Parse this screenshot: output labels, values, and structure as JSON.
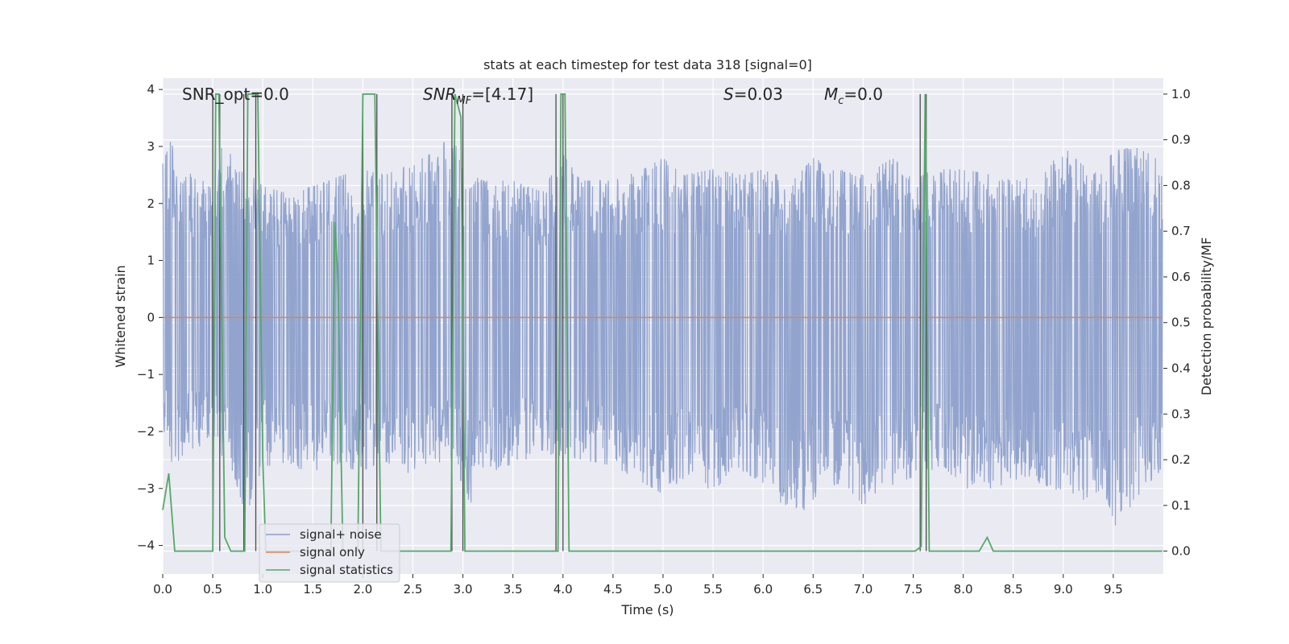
{
  "chart_data": {
    "type": "line",
    "title": "stats at each timestep for test data 318 [signal=0]",
    "xlabel": "Time (s)",
    "ylabel": "Whitened strain",
    "y2label": "Detection probability/MF",
    "xlim": [
      0,
      10
    ],
    "ylim": [
      -4.5,
      4.2
    ],
    "y2lim": [
      -0.05,
      1.035
    ],
    "xticks": [
      "0.0",
      "0.5",
      "1.0",
      "1.5",
      "2.0",
      "2.5",
      "3.0",
      "3.5",
      "4.0",
      "4.5",
      "5.0",
      "5.5",
      "6.0",
      "6.5",
      "7.0",
      "7.5",
      "8.0",
      "8.5",
      "9.0",
      "9.5"
    ],
    "yticks": [
      "4",
      "3",
      "2",
      "1",
      "0",
      "−1",
      "−2",
      "−3",
      "−4"
    ],
    "y2ticks": [
      "1.0",
      "0.9",
      "0.8",
      "0.7",
      "0.6",
      "0.5",
      "0.4",
      "0.3",
      "0.2",
      "0.1",
      "0.0"
    ],
    "grid": true,
    "legend_position": "lower-left",
    "annotations": {
      "snr_opt": "SNR_opt=0.0",
      "snr_mf_label": "SNR",
      "snr_mf_sub": "MF",
      "snr_mf_value": "=[4.17]",
      "s_label": "S",
      "s_value": "=0.03",
      "mc_label": "M",
      "mc_sub": "c",
      "mc_value": "=0.0"
    },
    "colors": {
      "signal_noise": "#8da0cb",
      "signal_only": "#dd8452",
      "statistics": "#55a868",
      "markers": "#4c4c4c",
      "background": "#eaeaf2",
      "grid": "#ffffff"
    },
    "series": [
      {
        "name": "signal+ noise",
        "note_visible": "dense noise trace, envelope",
        "upper_envelope": [
          [
            0.0,
            2.7
          ],
          [
            0.1,
            3.2
          ],
          [
            0.2,
            2.6
          ],
          [
            0.3,
            2.5
          ],
          [
            0.5,
            2.3
          ],
          [
            0.6,
            3.1
          ],
          [
            0.7,
            2.8
          ],
          [
            0.9,
            2.5
          ],
          [
            1.0,
            2.3
          ],
          [
            1.2,
            2.2
          ],
          [
            1.5,
            2.3
          ],
          [
            1.8,
            2.5
          ],
          [
            2.0,
            2.6
          ],
          [
            2.2,
            2.5
          ],
          [
            2.5,
            2.7
          ],
          [
            2.7,
            2.9
          ],
          [
            2.9,
            3.2
          ],
          [
            3.0,
            2.6
          ],
          [
            3.2,
            2.4
          ],
          [
            3.5,
            2.4
          ],
          [
            3.8,
            2.2
          ],
          [
            4.0,
            2.9
          ],
          [
            4.2,
            2.4
          ],
          [
            4.5,
            2.4
          ],
          [
            4.8,
            2.6
          ],
          [
            5.0,
            2.8
          ],
          [
            5.2,
            2.5
          ],
          [
            5.5,
            2.6
          ],
          [
            5.8,
            2.5
          ],
          [
            6.0,
            2.6
          ],
          [
            6.3,
            2.4
          ],
          [
            6.5,
            2.8
          ],
          [
            6.8,
            2.6
          ],
          [
            7.0,
            2.5
          ],
          [
            7.3,
            2.8
          ],
          [
            7.5,
            2.4
          ],
          [
            7.7,
            2.6
          ],
          [
            8.0,
            2.6
          ],
          [
            8.3,
            2.5
          ],
          [
            8.5,
            2.4
          ],
          [
            8.8,
            2.5
          ],
          [
            9.0,
            3.0
          ],
          [
            9.3,
            2.5
          ],
          [
            9.5,
            2.9
          ],
          [
            9.7,
            3.0
          ],
          [
            9.95,
            2.8
          ]
        ],
        "lower_envelope": [
          [
            0.0,
            -2.0
          ],
          [
            0.1,
            -2.6
          ],
          [
            0.3,
            -2.3
          ],
          [
            0.5,
            -2.2
          ],
          [
            0.7,
            -2.7
          ],
          [
            0.85,
            -3.6
          ],
          [
            1.0,
            -2.6
          ],
          [
            1.2,
            -2.6
          ],
          [
            1.5,
            -2.7
          ],
          [
            1.7,
            -2.6
          ],
          [
            2.0,
            -2.7
          ],
          [
            2.2,
            -2.5
          ],
          [
            2.4,
            -2.7
          ],
          [
            2.6,
            -2.8
          ],
          [
            2.9,
            -2.5
          ],
          [
            3.1,
            -3.4
          ],
          [
            3.3,
            -2.7
          ],
          [
            3.6,
            -2.5
          ],
          [
            3.9,
            -2.4
          ],
          [
            4.2,
            -2.5
          ],
          [
            4.5,
            -2.6
          ],
          [
            4.8,
            -2.9
          ],
          [
            5.0,
            -3.1
          ],
          [
            5.3,
            -2.7
          ],
          [
            5.5,
            -3.1
          ],
          [
            5.7,
            -2.6
          ],
          [
            6.0,
            -2.9
          ],
          [
            6.2,
            -3.3
          ],
          [
            6.4,
            -3.4
          ],
          [
            6.6,
            -3.0
          ],
          [
            6.8,
            -2.9
          ],
          [
            7.0,
            -3.3
          ],
          [
            7.2,
            -3.0
          ],
          [
            7.5,
            -2.8
          ],
          [
            7.8,
            -2.6
          ],
          [
            8.0,
            -3.0
          ],
          [
            8.3,
            -3.0
          ],
          [
            8.6,
            -2.8
          ],
          [
            8.9,
            -3.0
          ],
          [
            9.2,
            -3.2
          ],
          [
            9.4,
            -3.0
          ],
          [
            9.55,
            -3.8
          ],
          [
            9.7,
            -3.2
          ],
          [
            9.95,
            -2.8
          ]
        ]
      },
      {
        "name": "signal only",
        "x": [
          0.0,
          9.99
        ],
        "y": [
          0.0,
          0.0
        ]
      },
      {
        "name": "signal statistics",
        "axis": "right",
        "x": [
          0.0,
          0.06,
          0.12,
          0.18,
          0.5,
          0.53,
          0.56,
          0.62,
          0.68,
          0.75,
          0.82,
          0.85,
          0.9,
          0.95,
          1.0,
          1.03,
          1.08,
          1.45,
          1.68,
          1.72,
          1.75,
          1.8,
          1.85,
          1.95,
          2.0,
          2.08,
          2.12,
          2.18,
          2.22,
          2.88,
          2.92,
          2.98,
          3.02,
          3.06,
          3.95,
          3.98,
          4.02,
          4.06,
          4.08,
          7.52,
          7.58,
          7.62,
          7.66,
          7.7,
          8.16,
          8.24,
          8.3,
          9.99
        ],
        "y": [
          0.09,
          0.17,
          0.0,
          0.0,
          0.0,
          1.0,
          1.0,
          0.03,
          0.0,
          0.0,
          0.0,
          1.0,
          1.0,
          1.0,
          0.2,
          0.0,
          0.0,
          0.0,
          0.0,
          0.72,
          0.6,
          0.0,
          0.0,
          0.0,
          1.0,
          1.0,
          1.0,
          0.0,
          0.0,
          0.0,
          1.0,
          0.95,
          0.0,
          0.0,
          0.0,
          1.0,
          1.0,
          0.0,
          0.0,
          0.0,
          0.01,
          1.0,
          0.0,
          0.0,
          0.0,
          0.03,
          0.0,
          0.0
        ]
      }
    ],
    "event_lines_x": [
      0.5,
      0.57,
      0.81,
      0.93,
      2.0,
      2.14,
      2.89,
      3.0,
      3.93,
      4.0,
      7.57,
      7.63
    ],
    "legend": [
      "signal+ noise",
      "signal only",
      "signal statistics"
    ]
  }
}
